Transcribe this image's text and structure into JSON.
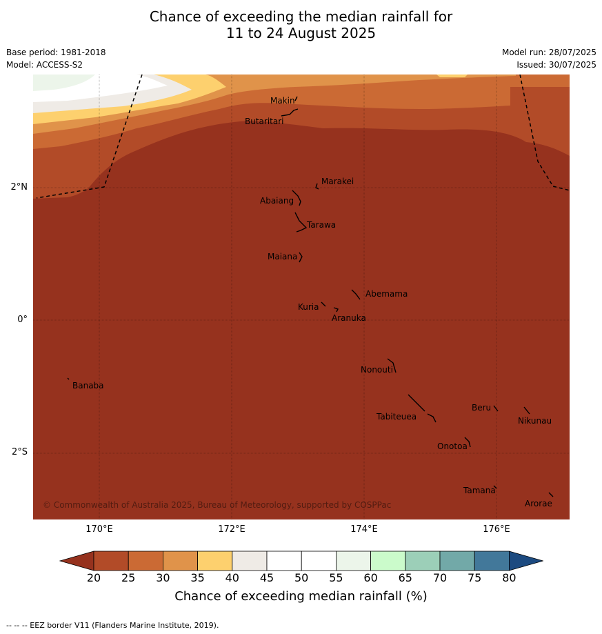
{
  "title_line1": "Chance of exceeding the median rainfall for",
  "title_line2": "11 to 24 August 2025",
  "base_period": "Base period: 1981-2018",
  "model": "Model: ACCESS-S2",
  "model_run": "Model run: 28/07/2025",
  "issued": "Issued: 30/07/2025",
  "copyright": "© Commonwealth of Australia 2025, Bureau of Meteorology, supported by COSPPac",
  "lat_ticks": [
    "2°N",
    "0°",
    "2°S"
  ],
  "lon_ticks": [
    "170°E",
    "172°E",
    "174°E",
    "176°E"
  ],
  "islands": [
    {
      "name": "Makin"
    },
    {
      "name": "Butaritari"
    },
    {
      "name": "Marakei"
    },
    {
      "name": "Abaiang"
    },
    {
      "name": "Tarawa"
    },
    {
      "name": "Maiana"
    },
    {
      "name": "Abemama"
    },
    {
      "name": "Kuria"
    },
    {
      "name": "Aranuka"
    },
    {
      "name": "Nonouti"
    },
    {
      "name": "Banaba"
    },
    {
      "name": "Beru"
    },
    {
      "name": "Tabiteuea"
    },
    {
      "name": "Nikunau"
    },
    {
      "name": "Onotoa"
    },
    {
      "name": "Tamana"
    },
    {
      "name": "Arorae"
    }
  ],
  "colorbar": {
    "ticks": [
      "20",
      "25",
      "30",
      "35",
      "40",
      "45",
      "50",
      "55",
      "60",
      "65",
      "70",
      "75",
      "80"
    ],
    "colors": [
      "#96321e",
      "#b24b28",
      "#cb6a34",
      "#e0934a",
      "#fdd06e",
      "#efebe6",
      "#ffffff",
      "#ffffff",
      "#ecf5ea",
      "#cbfbcb",
      "#9ccfb8",
      "#72a9a8",
      "#42789a",
      "#1c4a80"
    ],
    "label": "Chance of exceeding median rainfall (%)"
  },
  "footer": "--  --  -- EEZ border V11 (Flanders Marine Institute, 2019)."
}
